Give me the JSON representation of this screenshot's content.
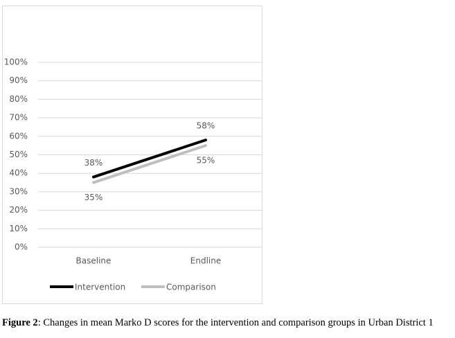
{
  "chart_data": {
    "type": "line",
    "categories": [
      "Baseline",
      "Endline"
    ],
    "series": [
      {
        "name": "Intervention",
        "color": "#000000",
        "values": [
          38,
          58
        ],
        "value_labels": [
          "38%",
          "58%"
        ]
      },
      {
        "name": "Comparison",
        "color": "#bfbfbf",
        "values": [
          35,
          55
        ],
        "value_labels": [
          "35%",
          "55%"
        ]
      }
    ],
    "ylim": [
      0,
      100
    ],
    "yticks": [
      {
        "value": 0,
        "label": "0%"
      },
      {
        "value": 10,
        "label": "10%"
      },
      {
        "value": 20,
        "label": "20%"
      },
      {
        "value": 30,
        "label": "30%"
      },
      {
        "value": 40,
        "label": "40%"
      },
      {
        "value": 50,
        "label": "50%"
      },
      {
        "value": 60,
        "label": "60%"
      },
      {
        "value": 70,
        "label": "70%"
      },
      {
        "value": 80,
        "label": "80%"
      },
      {
        "value": 90,
        "label": "90%"
      },
      {
        "value": 100,
        "label": "100%"
      }
    ],
    "grid": true,
    "legend": "bottom"
  },
  "caption": {
    "label": "Figure 2",
    "text": ": Changes in mean Marko D scores for the intervention and comparison groups in Urban District 1"
  }
}
